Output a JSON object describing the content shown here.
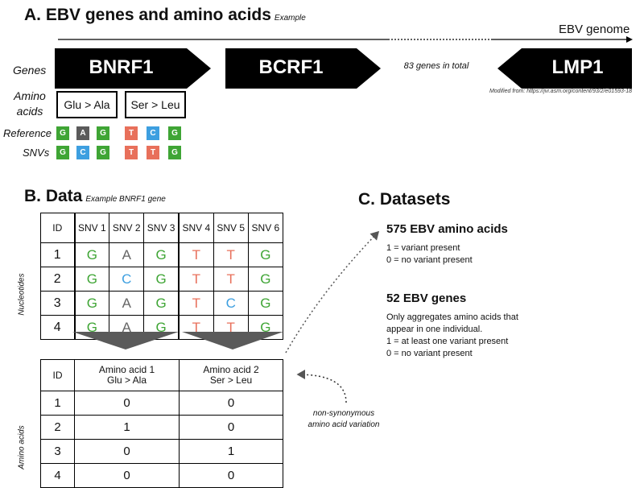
{
  "sectionA": {
    "title": "A. EBV genes and amino acids",
    "note": "Example",
    "genome_label": "EBV genome",
    "row_genes": "Genes",
    "row_amino": "Amino",
    "row_amino2": "acids",
    "row_reference": "Reference",
    "row_snvs": "SNVs",
    "genes": [
      "BNRF1",
      "BCRF1",
      "LMP1"
    ],
    "genes_total": "83 genes in total",
    "source": "Modified from: https://jvi.asm.org/content/93/2/e01593-18",
    "aa_boxes": [
      "Glu > Ala",
      "Ser > Leu"
    ],
    "reference": [
      "G",
      "A",
      "G",
      "T",
      "C",
      "G"
    ],
    "snvs": [
      "G",
      "C",
      "G",
      "T",
      "T",
      "G"
    ]
  },
  "sectionB": {
    "title": "B. Data",
    "note": "Example BNRF1 gene",
    "side_nucleotides": "Nucleotides",
    "side_amino": "Amino acids",
    "nt_headers": [
      "ID",
      "SNV 1",
      "SNV 2",
      "SNV 3",
      "SNV 4",
      "SNV 5",
      "SNV 6"
    ],
    "nt_rows": [
      [
        "1",
        "G",
        "A",
        "G",
        "T",
        "T",
        "G"
      ],
      [
        "2",
        "G",
        "C",
        "G",
        "T",
        "T",
        "G"
      ],
      [
        "3",
        "G",
        "A",
        "G",
        "T",
        "C",
        "G"
      ],
      [
        "4",
        "G",
        "A",
        "G",
        "T",
        "T",
        "G"
      ]
    ],
    "aa_headers": {
      "id": "ID",
      "aa1_line1": "Amino acid 1",
      "aa1_line2": "Glu > Ala",
      "aa2_line1": "Amino acid 2",
      "aa2_line2": "Ser > Leu"
    },
    "aa_rows": [
      [
        "1",
        "0",
        "0"
      ],
      [
        "2",
        "1",
        "0"
      ],
      [
        "3",
        "0",
        "1"
      ],
      [
        "4",
        "0",
        "0"
      ]
    ],
    "nonsyn_line1": "non-synonymous",
    "nonsyn_line2": "amino acid variation"
  },
  "sectionC": {
    "title": "C. Datasets",
    "ds1_head": "575 EBV amino acids",
    "ds1_lines": [
      "1 = variant present",
      "0 = no variant present"
    ],
    "ds2_head": "52 EBV genes",
    "ds2_lines": [
      "Only aggregates amino acids that",
      "appear in one individual.",
      "1 = at least one variant present",
      "0 = no variant present"
    ]
  },
  "colors": {
    "G": "#3fa535",
    "A": "#5b5b5b",
    "T": "#e8705b",
    "C": "#3d9fe0"
  }
}
